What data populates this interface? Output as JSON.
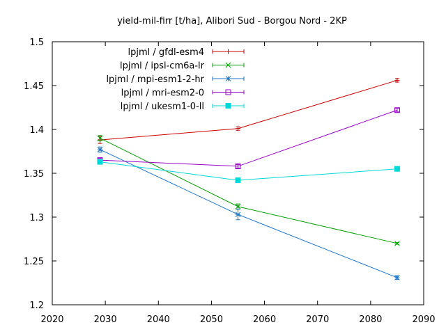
{
  "chart_data": {
    "type": "line",
    "title": "yield-mil-firr [t/ha], Alibori Sud - Borgou Nord - 2KP",
    "xlabel": "",
    "ylabel": "",
    "xlim": [
      2020,
      2090
    ],
    "ylim": [
      1.2,
      1.5
    ],
    "xticks": [
      2020,
      2030,
      2040,
      2050,
      2060,
      2070,
      2080,
      2090
    ],
    "yticks": [
      1.2,
      1.25,
      1.3,
      1.35,
      1.4,
      1.45,
      1.5
    ],
    "xtick_labels": [
      "2020",
      "2030",
      "2040",
      "2050",
      "2060",
      "2070",
      "2080",
      "2090"
    ],
    "ytick_labels": [
      "1.2",
      "1.25",
      "1.3",
      "1.35",
      "1.4",
      "1.45",
      "1.5"
    ],
    "grid": false,
    "legend_position": "top-left",
    "x": [
      2029,
      2055,
      2085
    ],
    "series": [
      {
        "name": "lpjml / gfdl-esm4",
        "color": "#cc0000",
        "marker": "plus",
        "values": [
          1.388,
          1.401,
          1.456
        ],
        "errors": [
          0.004,
          0.002,
          0.002
        ]
      },
      {
        "name": "lpjml / ipsl-cm6a-lr",
        "color": "#00a000",
        "marker": "x",
        "values": [
          1.39,
          1.312,
          1.27
        ],
        "errors": [
          0.003,
          0.003,
          0.001
        ]
      },
      {
        "name": "lpjml / mpi-esm1-2-hr",
        "color": "#1874cd",
        "marker": "star",
        "values": [
          1.377,
          1.303,
          1.231
        ],
        "errors": [
          0.003,
          0.006,
          0.002
        ]
      },
      {
        "name": "lpjml / mri-esm2-0",
        "color": "#9900cc",
        "marker": "open-square",
        "values": [
          1.365,
          1.358,
          1.422
        ],
        "errors": [
          0.002,
          0.002,
          0.002
        ]
      },
      {
        "name": "lpjml / ukesm1-0-ll",
        "color": "#00d8d8",
        "marker": "filled-square",
        "values": [
          1.363,
          1.342,
          1.355
        ],
        "errors": [
          0.002,
          0.002,
          0.002
        ]
      }
    ]
  }
}
